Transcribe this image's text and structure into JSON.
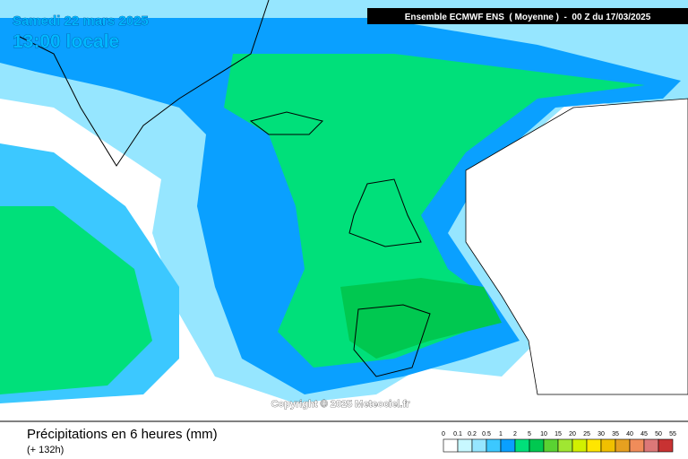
{
  "header": {
    "date": "Samedi 22 mars 2025",
    "time": "13:00 locale",
    "model": "Ensemble ECMWF ENS  ( Moyenne )  -  00 Z du 17/03/2025"
  },
  "copyright": "Copyright © 2025 Meteociel.fr",
  "footer": {
    "title": "Précipitations en 6 heures (mm)",
    "lead": "(+ 132h)"
  },
  "legend": {
    "labels": [
      "0",
      "0.1",
      "0.2",
      "0.5",
      "1",
      "2",
      "5",
      "10",
      "15",
      "20",
      "25",
      "30",
      "35",
      "40",
      "45",
      "50",
      "55"
    ],
    "colors": [
      "#ffffff",
      "#c8f8ff",
      "#96e6ff",
      "#3cc8ff",
      "#0aa0ff",
      "#00e07a",
      "#00c850",
      "#5ad232",
      "#a0e632",
      "#d2f000",
      "#ffe600",
      "#f0c000",
      "#e6a020",
      "#f08c5a",
      "#dc7878",
      "#c83232"
    ]
  }
}
